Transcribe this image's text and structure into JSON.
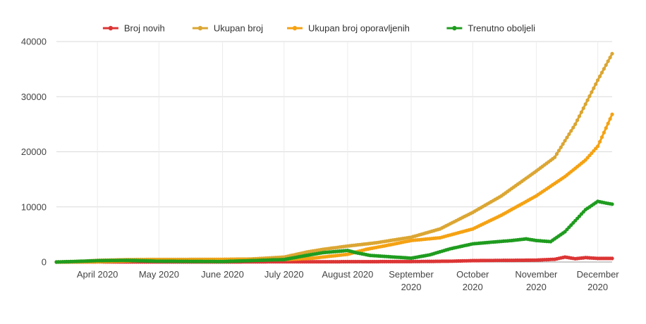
{
  "chart_data": {
    "type": "line",
    "title": "",
    "xlabel": "",
    "ylabel": "",
    "ylim": [
      0,
      40000
    ],
    "y_ticks": [
      0,
      10000,
      20000,
      30000,
      40000
    ],
    "y_tick_labels": [
      "0",
      "10000",
      "20000",
      "30000",
      "40000"
    ],
    "x_range": [
      "2020-03-12",
      "2020-12-08"
    ],
    "x_ticks": [
      {
        "date": "2020-04-01",
        "lines": [
          "April 2020"
        ]
      },
      {
        "date": "2020-05-01",
        "lines": [
          "May 2020"
        ]
      },
      {
        "date": "2020-06-01",
        "lines": [
          "June 2020"
        ]
      },
      {
        "date": "2020-07-01",
        "lines": [
          "July 2020"
        ]
      },
      {
        "date": "2020-08-01",
        "lines": [
          "August 2020"
        ]
      },
      {
        "date": "2020-09-01",
        "lines": [
          "September",
          "2020"
        ]
      },
      {
        "date": "2020-10-01",
        "lines": [
          "October",
          "2020"
        ]
      },
      {
        "date": "2020-11-01",
        "lines": [
          "November",
          "2020"
        ]
      },
      {
        "date": "2020-12-01",
        "lines": [
          "December",
          "2020"
        ]
      }
    ],
    "legend_position": "top",
    "grid": true,
    "series": [
      {
        "name": "Broj novih",
        "color": "#dc3535",
        "points": [
          [
            "2020-03-12",
            0
          ],
          [
            "2020-04-01",
            20
          ],
          [
            "2020-05-01",
            10
          ],
          [
            "2020-06-01",
            10
          ],
          [
            "2020-07-01",
            40
          ],
          [
            "2020-08-01",
            60
          ],
          [
            "2020-09-01",
            80
          ],
          [
            "2020-09-20",
            150
          ],
          [
            "2020-10-01",
            250
          ],
          [
            "2020-10-15",
            300
          ],
          [
            "2020-10-25",
            320
          ],
          [
            "2020-11-01",
            350
          ],
          [
            "2020-11-10",
            500
          ],
          [
            "2020-11-15",
            900
          ],
          [
            "2020-11-20",
            600
          ],
          [
            "2020-11-25",
            800
          ],
          [
            "2020-12-01",
            650
          ],
          [
            "2020-12-08",
            650
          ]
        ]
      },
      {
        "name": "Ukupan broj",
        "color": "#dba633",
        "points": [
          [
            "2020-03-12",
            0
          ],
          [
            "2020-03-25",
            150
          ],
          [
            "2020-04-01",
            300
          ],
          [
            "2020-04-15",
            430
          ],
          [
            "2020-05-01",
            470
          ],
          [
            "2020-06-01",
            490
          ],
          [
            "2020-06-15",
            550
          ],
          [
            "2020-07-01",
            900
          ],
          [
            "2020-07-12",
            1800
          ],
          [
            "2020-07-20",
            2300
          ],
          [
            "2020-08-01",
            2900
          ],
          [
            "2020-08-15",
            3500
          ],
          [
            "2020-09-01",
            4500
          ],
          [
            "2020-09-15",
            6000
          ],
          [
            "2020-10-01",
            9000
          ],
          [
            "2020-10-15",
            12000
          ],
          [
            "2020-11-01",
            16500
          ],
          [
            "2020-11-10",
            19000
          ],
          [
            "2020-11-20",
            25000
          ],
          [
            "2020-12-01",
            33000
          ],
          [
            "2020-12-08",
            37800
          ]
        ]
      },
      {
        "name": "Ukupan broj oporavljenih",
        "color": "#f5a213",
        "points": [
          [
            "2020-03-12",
            0
          ],
          [
            "2020-04-01",
            50
          ],
          [
            "2020-04-15",
            200
          ],
          [
            "2020-05-01",
            350
          ],
          [
            "2020-06-01",
            400
          ],
          [
            "2020-07-01",
            450
          ],
          [
            "2020-07-15",
            700
          ],
          [
            "2020-08-01",
            1400
          ],
          [
            "2020-08-10",
            2300
          ],
          [
            "2020-08-20",
            3000
          ],
          [
            "2020-09-01",
            3900
          ],
          [
            "2020-09-15",
            4400
          ],
          [
            "2020-10-01",
            6000
          ],
          [
            "2020-10-15",
            8500
          ],
          [
            "2020-11-01",
            12000
          ],
          [
            "2020-11-15",
            15500
          ],
          [
            "2020-11-25",
            18500
          ],
          [
            "2020-12-01",
            21000
          ],
          [
            "2020-12-08",
            26800
          ]
        ]
      },
      {
        "name": "Trenutno oboljeli",
        "color": "#1f9c1f",
        "points": [
          [
            "2020-03-12",
            0
          ],
          [
            "2020-03-25",
            150
          ],
          [
            "2020-04-01",
            250
          ],
          [
            "2020-04-15",
            300
          ],
          [
            "2020-05-01",
            150
          ],
          [
            "2020-06-01",
            90
          ],
          [
            "2020-07-01",
            450
          ],
          [
            "2020-07-12",
            1200
          ],
          [
            "2020-07-20",
            1700
          ],
          [
            "2020-08-01",
            2100
          ],
          [
            "2020-08-05",
            1700
          ],
          [
            "2020-08-12",
            1200
          ],
          [
            "2020-09-01",
            700
          ],
          [
            "2020-09-10",
            1300
          ],
          [
            "2020-09-20",
            2400
          ],
          [
            "2020-10-01",
            3300
          ],
          [
            "2020-10-10",
            3600
          ],
          [
            "2020-10-20",
            3900
          ],
          [
            "2020-10-27",
            4200
          ],
          [
            "2020-11-01",
            3900
          ],
          [
            "2020-11-08",
            3700
          ],
          [
            "2020-11-15",
            5500
          ],
          [
            "2020-11-20",
            7500
          ],
          [
            "2020-11-25",
            9500
          ],
          [
            "2020-12-01",
            11000
          ],
          [
            "2020-12-05",
            10700
          ],
          [
            "2020-12-08",
            10500
          ]
        ]
      }
    ]
  }
}
